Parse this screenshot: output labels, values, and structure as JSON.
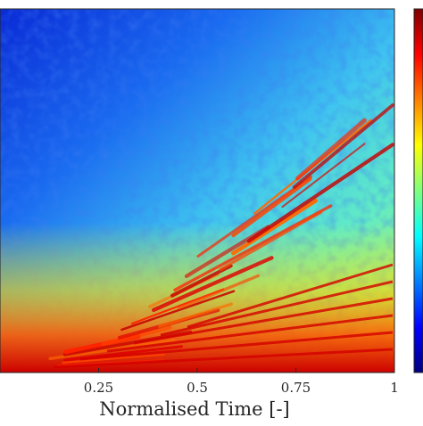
{
  "chart_data": {
    "type": "heatmap",
    "title": "",
    "xlabel": "Normalised Time [-]",
    "ylabel": "",
    "xlim": [
      0,
      1
    ],
    "x_ticks": [
      0.25,
      0.5,
      0.75,
      1
    ],
    "x_tick_labels": [
      "0.25",
      "0.5",
      "0.75",
      "1"
    ],
    "colormap": "jet",
    "colorbar": {
      "ticks": [],
      "tick_labels": []
    },
    "colormap_stops": [
      "#00007f",
      "#0000ff",
      "#007fff",
      "#00ffff",
      "#7fff7f",
      "#ffff00",
      "#ff7f00",
      "#ff0000",
      "#7f0000"
    ],
    "description_of_field": "Intensity map: low (dark blue) at top-left rising to high (red) along the bottom edge; bright red diagonal streaks fan out from the lower-left corner toward the right edge, steepening with later time."
  }
}
